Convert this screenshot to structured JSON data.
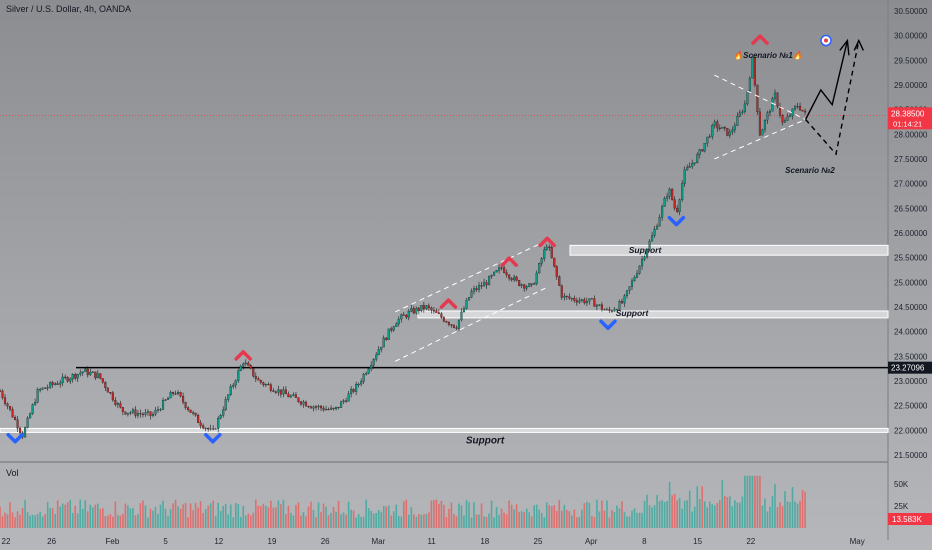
{
  "header": {
    "title": "Silver / U.S. Dollar, 4h, OANDA"
  },
  "volume_panel": {
    "label": "Vol"
  },
  "colors": {
    "up": "#26a69a",
    "down": "#ef5350",
    "arrow_up_marker": "#e53950",
    "arrow_down_marker": "#2962ff",
    "price_line": "#f23645",
    "level_line": "#000000"
  },
  "chart_data": {
    "type": "candlestick",
    "symbol": "Silver / U.S. Dollar",
    "timeframe": "4h",
    "source": "OANDA",
    "ylim": [
      21.4,
      30.6
    ],
    "y_tick_labels": [
      "21.50000",
      "22.00000",
      "22.50000",
      "23.00000",
      "23.50000",
      "24.00000",
      "24.50000",
      "25.00000",
      "25.50000",
      "26.00000",
      "26.50000",
      "27.00000",
      "27.50000",
      "28.00000",
      "28.50000",
      "29.00000",
      "29.50000",
      "30.00000",
      "30.50000"
    ],
    "x_tick_labels": [
      "22",
      "26",
      "Feb",
      "5",
      "12",
      "19",
      "26",
      "Mar",
      "11",
      "18",
      "25",
      "Apr",
      "8",
      "15",
      "22",
      "May"
    ],
    "price_path": [
      {
        "d": 0,
        "p": 22.8
      },
      {
        "d": 2,
        "p": 22.2
      },
      {
        "d": 3,
        "p": 21.9
      },
      {
        "d": 5,
        "p": 22.8
      },
      {
        "d": 8,
        "p": 23.0
      },
      {
        "d": 11,
        "p": 23.2
      },
      {
        "d": 13,
        "p": 23.1
      },
      {
        "d": 16,
        "p": 22.4
      },
      {
        "d": 20,
        "p": 22.3
      },
      {
        "d": 23,
        "p": 22.8
      },
      {
        "d": 26,
        "p": 22.2
      },
      {
        "d": 28,
        "p": 21.95
      },
      {
        "d": 30,
        "p": 22.7
      },
      {
        "d": 32,
        "p": 23.4
      },
      {
        "d": 34,
        "p": 23.0
      },
      {
        "d": 38,
        "p": 22.7
      },
      {
        "d": 41,
        "p": 22.5
      },
      {
        "d": 44,
        "p": 22.4
      },
      {
        "d": 47,
        "p": 22.9
      },
      {
        "d": 50,
        "p": 23.7
      },
      {
        "d": 52,
        "p": 24.2
      },
      {
        "d": 54,
        "p": 24.4
      },
      {
        "d": 56,
        "p": 24.5
      },
      {
        "d": 60,
        "p": 24.1
      },
      {
        "d": 62,
        "p": 24.8
      },
      {
        "d": 64,
        "p": 25.0
      },
      {
        "d": 66,
        "p": 25.3
      },
      {
        "d": 68,
        "p": 25.0
      },
      {
        "d": 70,
        "p": 24.9
      },
      {
        "d": 72,
        "p": 25.8
      },
      {
        "d": 74,
        "p": 24.7
      },
      {
        "d": 78,
        "p": 24.6
      },
      {
        "d": 80,
        "p": 24.4
      },
      {
        "d": 82,
        "p": 24.6
      },
      {
        "d": 84,
        "p": 25.3
      },
      {
        "d": 86,
        "p": 26.0
      },
      {
        "d": 88,
        "p": 26.9
      },
      {
        "d": 89,
        "p": 26.4
      },
      {
        "d": 90,
        "p": 27.2
      },
      {
        "d": 92,
        "p": 27.6
      },
      {
        "d": 94,
        "p": 28.2
      },
      {
        "d": 96,
        "p": 28.0
      },
      {
        "d": 98,
        "p": 28.6
      },
      {
        "d": 99,
        "p": 29.5
      },
      {
        "d": 100,
        "p": 28.0
      },
      {
        "d": 102,
        "p": 28.8
      },
      {
        "d": 103,
        "p": 28.2
      },
      {
        "d": 105,
        "p": 28.6
      },
      {
        "d": 106,
        "p": 28.39
      }
    ],
    "volume_axis_labels": [
      "50K",
      "25K"
    ],
    "volume_last": "13.583K",
    "last_price": "28.38500",
    "last_price_countdown": "01:14:21",
    "horizontal_level": "23.27096",
    "support_zones": [
      {
        "from": 21.98,
        "to": 22.04,
        "start_day": 0,
        "label": "Support"
      },
      {
        "from": 24.28,
        "to": 24.42,
        "start_day": 55,
        "label": "Support"
      },
      {
        "from": 25.55,
        "to": 25.75,
        "start_day": 75,
        "label": "Support"
      }
    ],
    "annotations": {
      "scenario1": "🔥Scenario №1🔥",
      "scenario2": "Scenario №2"
    },
    "resistance_markers": [
      {
        "d": 32,
        "p": 23.55
      },
      {
        "d": 59,
        "p": 24.6
      },
      {
        "d": 67,
        "p": 25.45
      },
      {
        "d": 72,
        "p": 25.85
      },
      {
        "d": 100,
        "p": 29.95
      }
    ],
    "support_markers": [
      {
        "d": 2,
        "p": 21.85
      },
      {
        "d": 28,
        "p": 21.85
      },
      {
        "d": 80,
        "p": 24.15
      },
      {
        "d": 89,
        "p": 26.25
      }
    ]
  }
}
